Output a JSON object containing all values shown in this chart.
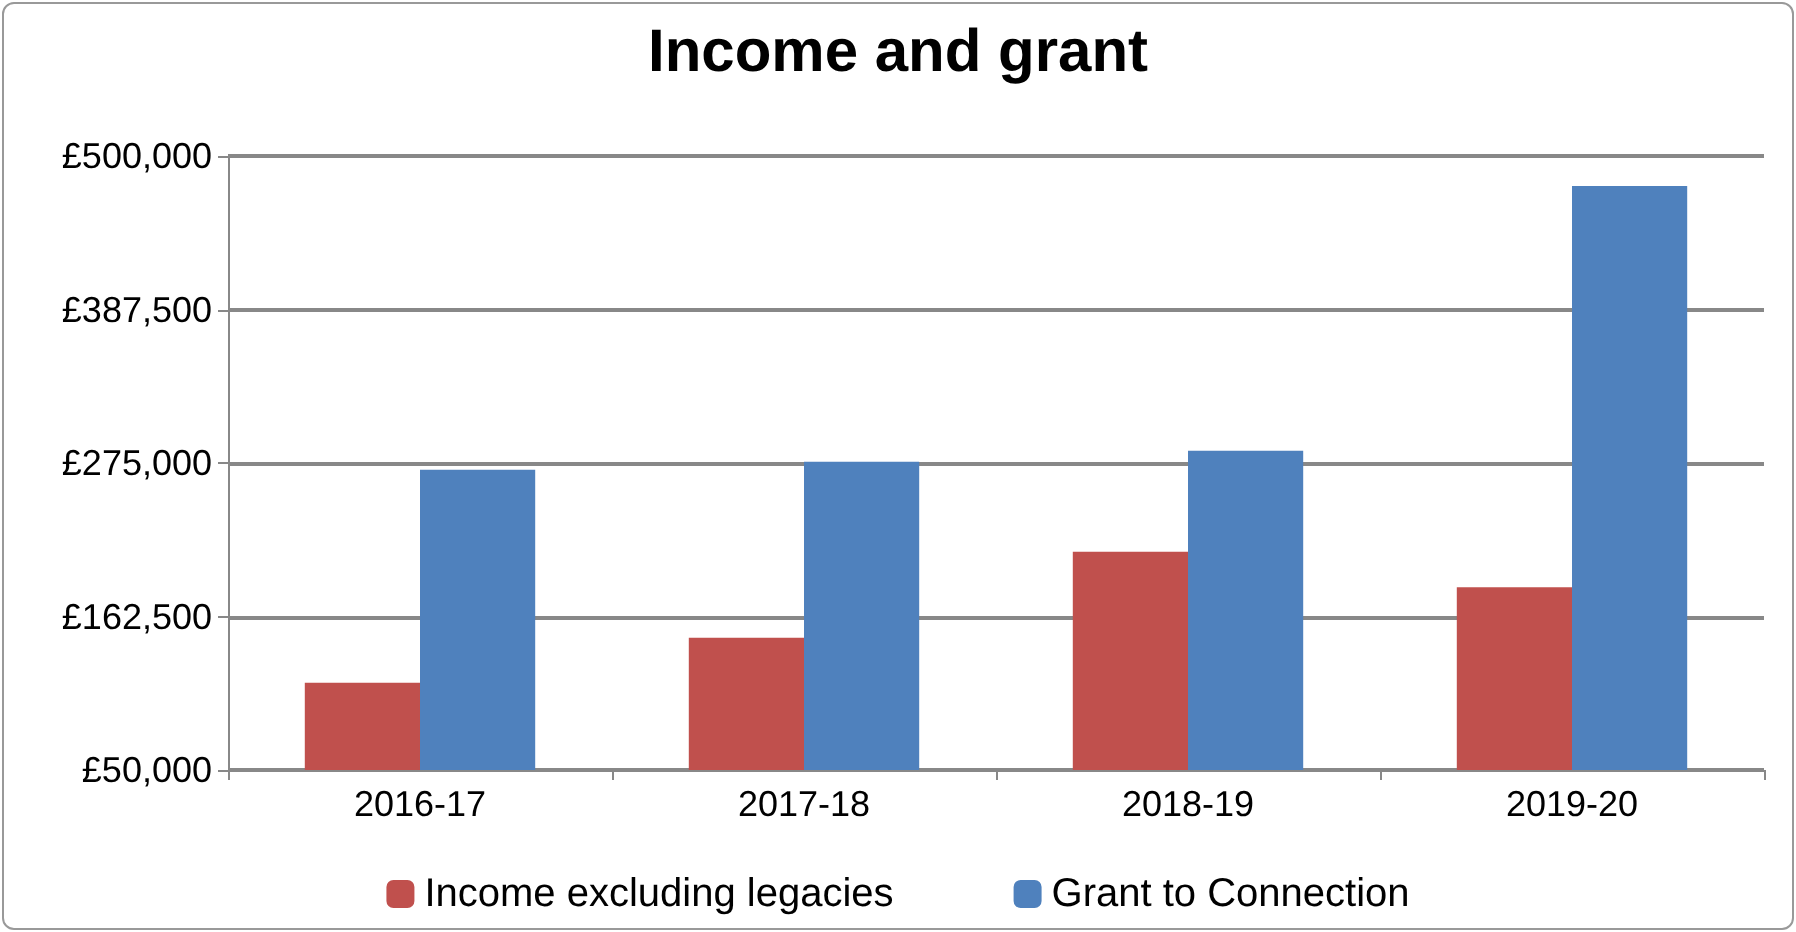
{
  "chart_data": {
    "type": "bar",
    "title": "Income and grant",
    "categories": [
      "2016-17",
      "2017-18",
      "2018-19",
      "2019-20"
    ],
    "series": [
      {
        "name": "Income excluding legacies",
        "color": "#c0504d",
        "values": [
          114000,
          147000,
          210000,
          184000
        ]
      },
      {
        "name": "Grant to Connection",
        "color": "#4f81bd",
        "values": [
          270000,
          276000,
          284000,
          478000
        ]
      }
    ],
    "ylim": [
      50000,
      500000
    ],
    "yticks": [
      {
        "value": 50000,
        "label": "£50,000"
      },
      {
        "value": 162500,
        "label": "£162,500"
      },
      {
        "value": 275000,
        "label": "£275,000"
      },
      {
        "value": 387500,
        "label": "£387,500"
      },
      {
        "value": 500000,
        "label": "£500,000"
      }
    ],
    "grid": "y",
    "legend": "bottom"
  }
}
